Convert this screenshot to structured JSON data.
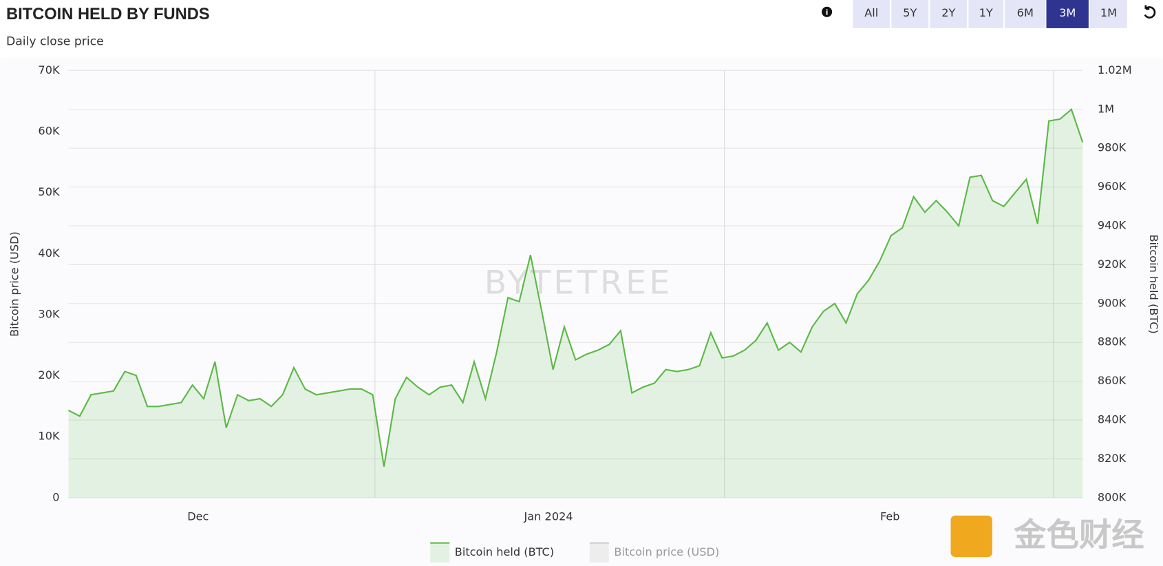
{
  "header": {
    "title": "BITCOIN HELD BY FUNDS",
    "subtitle": "Daily close price",
    "ranges": [
      "All",
      "5Y",
      "2Y",
      "1Y",
      "6M",
      "3M",
      "1M"
    ],
    "active_range": "3M"
  },
  "watermark": "BYTETREE",
  "logo": "金色财经",
  "chart_data": {
    "type": "area",
    "ylabel": "Bitcoin price (USD)",
    "y2label": "Bitcoin held (BTC)",
    "xlim": [
      0,
      90
    ],
    "xticks": [
      {
        "value": 11.5,
        "label": "Dec"
      },
      {
        "value": 42.6,
        "label": "Jan 2024"
      },
      {
        "value": 72.9,
        "label": "Feb"
      }
    ],
    "xgrid": [
      27.2,
      58.2,
      87.4
    ],
    "ylim": [
      0,
      70000
    ],
    "yticks": [
      0,
      {
        "value": 10000,
        "label": "10K"
      },
      {
        "value": 20000,
        "label": "20K"
      },
      {
        "value": 30000,
        "label": "30K"
      },
      {
        "value": 40000,
        "label": "40K"
      },
      {
        "value": 50000,
        "label": "50K"
      },
      {
        "value": 60000,
        "label": "60K"
      },
      {
        "value": 70000,
        "label": "70K"
      }
    ],
    "y2lim": [
      800000,
      1020000
    ],
    "y2ticks": [
      {
        "value": 800000,
        "label": "800K"
      },
      {
        "value": 820000,
        "label": "820K"
      },
      {
        "value": 840000,
        "label": "840K"
      },
      {
        "value": 860000,
        "label": "860K"
      },
      {
        "value": 880000,
        "label": "880K"
      },
      {
        "value": 900000,
        "label": "900K"
      },
      {
        "value": 920000,
        "label": "920K"
      },
      {
        "value": 940000,
        "label": "940K"
      },
      {
        "value": 960000,
        "label": "960K"
      },
      {
        "value": 980000,
        "label": "980K"
      },
      {
        "value": 1000000,
        "label": "1M"
      },
      {
        "value": 1020000,
        "label": "1.02M"
      }
    ],
    "grid": true,
    "series": [
      {
        "name": "Bitcoin held (BTC)",
        "color": "#5cb947",
        "axis": "y2",
        "values": [
          845000,
          842000,
          853000,
          854000,
          855000,
          865000,
          863000,
          847000,
          847000,
          848000,
          849000,
          858000,
          851000,
          870000,
          836000,
          853000,
          850000,
          851000,
          847000,
          853000,
          867000,
          856000,
          853000,
          854000,
          855000,
          856000,
          856000,
          853000,
          816000,
          851000,
          862000,
          857000,
          853000,
          857000,
          858000,
          849000,
          870000,
          851000,
          875000,
          903000,
          901000,
          925000,
          896000,
          866000,
          888000,
          871000,
          874000,
          876000,
          879000,
          886000,
          854000,
          857000,
          859000,
          866000,
          865000,
          866000,
          868000,
          885000,
          872000,
          873000,
          876000,
          881000,
          890000,
          876000,
          880000,
          875000,
          888000,
          896000,
          900000,
          890000,
          905000,
          912000,
          922000,
          935000,
          939000,
          955000,
          947000,
          953000,
          947000,
          940000,
          965000,
          966000,
          953000,
          950000,
          957000,
          964000,
          941000,
          994000,
          995000,
          1000000,
          983000
        ]
      },
      {
        "name": "Bitcoin price (USD)",
        "color": "#cccccc",
        "hidden": true
      }
    ]
  }
}
